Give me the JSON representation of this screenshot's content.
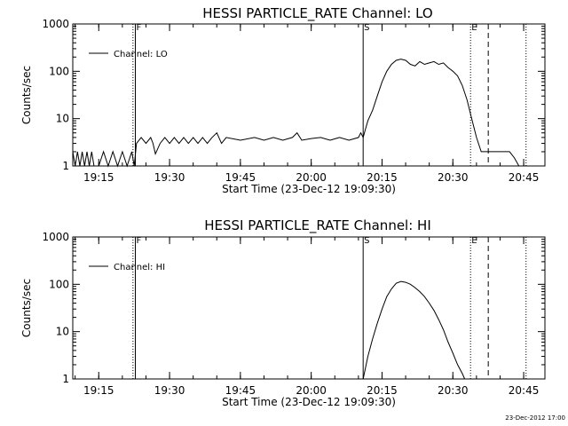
{
  "chart_data": [
    {
      "type": "line",
      "title": "HESSI PARTICLE_RATE Channel: LO",
      "xlabel": "Start Time (23-Dec-12 19:09:30)",
      "ylabel": "Counts/sec",
      "yscale": "log",
      "ylim": [
        1,
        1000
      ],
      "xlim": [
        "19:09:30",
        "20:49:30"
      ],
      "x_ticks": [
        "19:15",
        "19:30",
        "19:45",
        "20:00",
        "20:15",
        "20:30",
        "20:45"
      ],
      "y_ticks": [
        "1",
        "10",
        "100",
        "1000"
      ],
      "legend": "top-left",
      "grid": false,
      "markers": [
        {
          "label": "F",
          "time": "19:22:45",
          "style": "solid"
        },
        {
          "label": "",
          "time": "19:22:15",
          "style": "dotted"
        },
        {
          "label": "S",
          "time": "20:11:00",
          "style": "solid"
        },
        {
          "label": "E",
          "time": "20:33:45",
          "style": "dotted"
        },
        {
          "label": "",
          "time": "20:37:30",
          "style": "dashed"
        },
        {
          "label": "",
          "time": "20:45:30",
          "style": "dotted"
        }
      ],
      "series": [
        {
          "name": "Channel: LO",
          "x": [
            "19:09:30",
            "19:10:00",
            "19:10:30",
            "19:11:00",
            "19:11:30",
            "19:12:00",
            "19:12:30",
            "19:13:00",
            "19:13:30",
            "19:14:00",
            "19:15:00",
            "19:16:00",
            "19:17:00",
            "19:18:00",
            "19:19:00",
            "19:20:00",
            "19:21:00",
            "19:22:00",
            "19:22:30",
            "19:23:00",
            "19:24:00",
            "19:25:00",
            "19:26:00",
            "19:26:30",
            "19:27:00",
            "19:28:00",
            "19:29:00",
            "19:30:00",
            "19:31:00",
            "19:32:00",
            "19:33:00",
            "19:34:00",
            "19:35:00",
            "19:36:00",
            "19:37:00",
            "19:38:00",
            "19:39:00",
            "19:40:00",
            "19:41:00",
            "19:42:00",
            "19:45:00",
            "19:48:00",
            "19:50:00",
            "19:52:00",
            "19:54:00",
            "19:56:00",
            "19:57:00",
            "19:58:00",
            "20:00:00",
            "20:02:00",
            "20:04:00",
            "20:06:00",
            "20:08:00",
            "20:10:00",
            "20:10:30",
            "20:11:00",
            "20:11:30",
            "20:12:00",
            "20:13:00",
            "20:14:00",
            "20:15:00",
            "20:16:00",
            "20:17:00",
            "20:18:00",
            "20:19:00",
            "20:20:00",
            "20:21:00",
            "20:22:00",
            "20:23:00",
            "20:24:00",
            "20:25:00",
            "20:26:00",
            "20:27:00",
            "20:28:00",
            "20:29:00",
            "20:30:00",
            "20:31:00",
            "20:32:00",
            "20:33:00",
            "20:34:00",
            "20:35:00",
            "20:36:00",
            "20:37:00",
            "20:38:00",
            "20:39:00",
            "20:40:00",
            "20:41:00",
            "20:42:00",
            "20:43:00",
            "20:44:00"
          ],
          "y": [
            2,
            1,
            2,
            1,
            2,
            1,
            2,
            1,
            2,
            1,
            1,
            2,
            1,
            2,
            1,
            2,
            1,
            2,
            1,
            3,
            4,
            3,
            4,
            3,
            1.8,
            3,
            4,
            3,
            4,
            3,
            4,
            3,
            4,
            3,
            4,
            3,
            4,
            5,
            3,
            4,
            3.5,
            4,
            3.5,
            4,
            3.5,
            4,
            5,
            3.5,
            3.8,
            4,
            3.5,
            4,
            3.5,
            4,
            5,
            4,
            6,
            9,
            15,
            30,
            60,
            100,
            140,
            170,
            180,
            170,
            140,
            130,
            160,
            140,
            150,
            160,
            140,
            150,
            120,
            100,
            80,
            50,
            25,
            10,
            4,
            2,
            2,
            2,
            2,
            2,
            2,
            2,
            1.5,
            1
          ]
        }
      ]
    },
    {
      "type": "line",
      "title": "HESSI PARTICLE_RATE Channel: HI",
      "xlabel": "Start Time (23-Dec-12 19:09:30)",
      "ylabel": "Counts/sec",
      "yscale": "log",
      "ylim": [
        1,
        1000
      ],
      "xlim": [
        "19:09:30",
        "20:49:30"
      ],
      "x_ticks": [
        "19:15",
        "19:30",
        "19:45",
        "20:00",
        "20:15",
        "20:30",
        "20:45"
      ],
      "y_ticks": [
        "1",
        "10",
        "100",
        "1000"
      ],
      "legend": "top-left",
      "grid": false,
      "markers": [
        {
          "label": "F",
          "time": "19:22:45",
          "style": "solid"
        },
        {
          "label": "",
          "time": "19:22:15",
          "style": "dotted"
        },
        {
          "label": "S",
          "time": "20:11:00",
          "style": "solid"
        },
        {
          "label": "E",
          "time": "20:33:45",
          "style": "dotted"
        },
        {
          "label": "",
          "time": "20:37:30",
          "style": "dashed"
        },
        {
          "label": "",
          "time": "20:45:30",
          "style": "dotted"
        }
      ],
      "series": [
        {
          "name": "Channel: HI",
          "x": [
            "20:11:00",
            "20:12:00",
            "20:13:00",
            "20:14:00",
            "20:15:00",
            "20:16:00",
            "20:17:00",
            "20:18:00",
            "20:19:00",
            "20:20:00",
            "20:21:00",
            "20:22:00",
            "20:23:00",
            "20:24:00",
            "20:25:00",
            "20:26:00",
            "20:27:00",
            "20:28:00",
            "20:29:00",
            "20:30:00",
            "20:31:00",
            "20:32:00",
            "20:32:30"
          ],
          "y": [
            1,
            3,
            7,
            15,
            30,
            55,
            80,
            105,
            115,
            110,
            100,
            85,
            70,
            55,
            40,
            28,
            18,
            11,
            6,
            3.5,
            2,
            1.3,
            1
          ]
        }
      ]
    }
  ],
  "footer": {
    "stamp": "23-Dec-2012 17:00"
  }
}
